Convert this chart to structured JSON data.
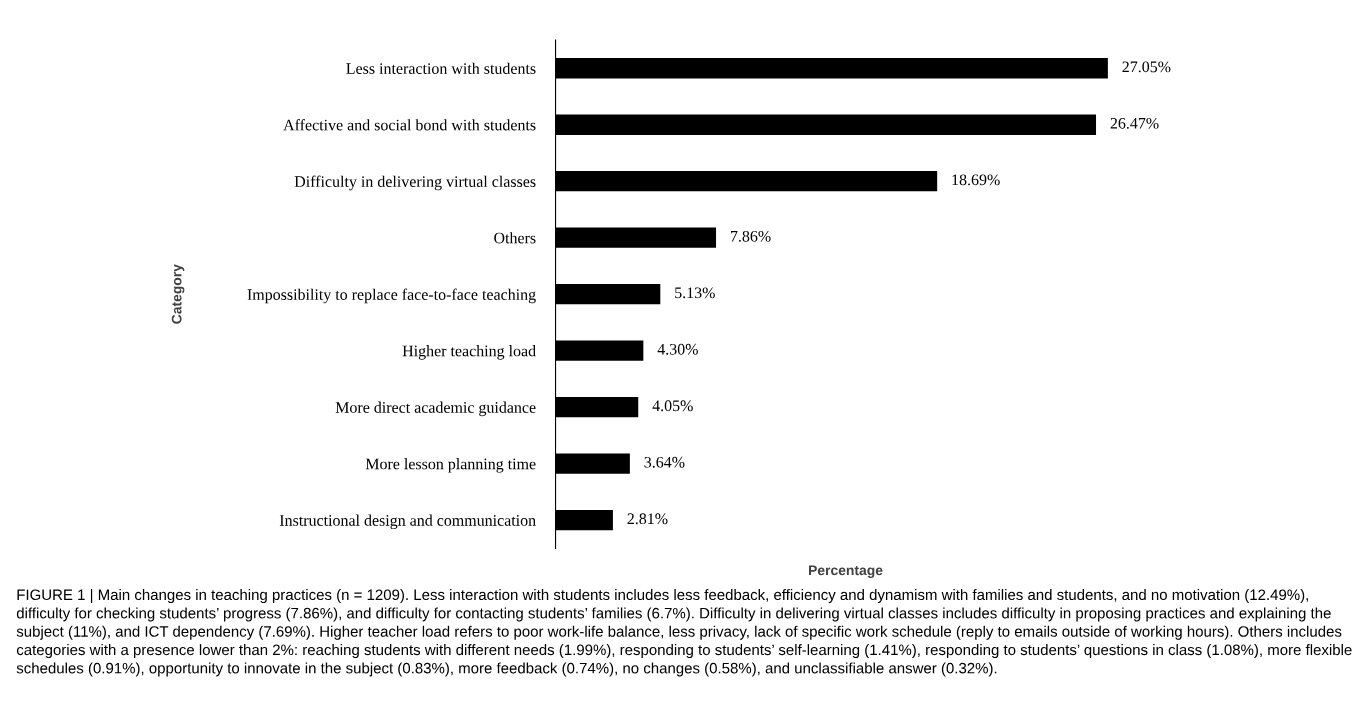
{
  "chart_data": {
    "type": "bar",
    "orientation": "horizontal",
    "xlabel": "Percentage",
    "ylabel": "Category",
    "categories": [
      "Less interaction with students",
      "Affective and social bond with students",
      "Difficulty in delivering virtual classes",
      "Others",
      "Impossibility to replace face-to-face teaching",
      "Higher teaching load",
      "More direct academic guidance",
      "More lesson planning time",
      "Instructional design and communication"
    ],
    "values": [
      27.05,
      26.47,
      18.69,
      7.86,
      5.13,
      4.3,
      4.05,
      3.64,
      2.81
    ],
    "value_labels": [
      "27.05%",
      "26.47%",
      "18.69%",
      "7.86%",
      "5.13%",
      "4.30%",
      "4.05%",
      "3.64%",
      "2.81%"
    ],
    "color": "#000000",
    "tick_labels": "y",
    "grid": false,
    "legend": false,
    "annotations": [
      "FIGURE 1 | Main changes in teaching practices (n = 1209). Less interaction with students includes less feedback, efficiency and dynamism with families and students, and no motivation (12.49%), difficulty for checking students’ progress (7.86%), and difficulty for contacting students’ families (6.7%). Difficulty in delivering virtual classes includes difficulty in proposing practices and explaining the subject (11%), and ICT dependency (7.69%). Higher teacher load refers to poor work-life balance, less privacy, lack of specific work schedule (reply to emails outside of working hours). Others includes categories with a presence lower than 2%: reaching students with different needs (1.99%), responding to students’ self-learning (1.41%), responding to students’ questions in class (1.08%), more flexible schedules (0.91%), opportunity to innovate in the subject (0.83%), more feedback (0.74%), no changes (0.58%), and unclassifiable answer (0.32%)."
    ]
  }
}
